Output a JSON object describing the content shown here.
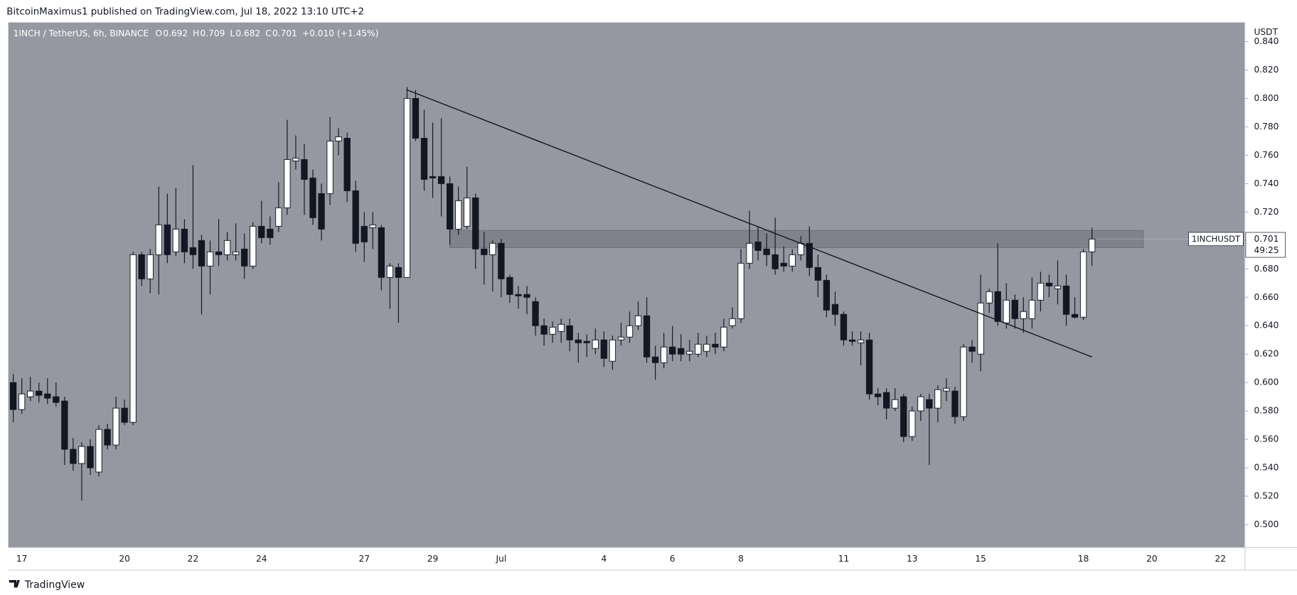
{
  "header": {
    "title": "BitcoinMaximus1 published on TradingView.com, Jul 18, 2022 13:10 UTC+2"
  },
  "footer": {
    "brand": "TradingView"
  },
  "chart_data": {
    "type": "candlestick",
    "title": "1INCH / TetherUS, 6h, BINANCE",
    "ohlc_legend": [
      {
        "key": "O",
        "value": 0.692
      },
      {
        "key": "H",
        "value": 0.709
      },
      {
        "key": "L",
        "value": 0.682
      },
      {
        "key": "C",
        "value": 0.701
      }
    ],
    "change": "+0.010 (+1.45%)",
    "y_label": "USDT",
    "up_color": "#ffffff",
    "down_color": "#131722",
    "background": "#9598a1",
    "categories": [
      null,
      "17",
      null,
      null,
      null,
      null,
      null,
      null,
      null,
      null,
      null,
      null,
      null,
      "20",
      null,
      null,
      null,
      null,
      null,
      null,
      null,
      "22",
      null,
      null,
      null,
      null,
      null,
      null,
      null,
      "24",
      null,
      null,
      null,
      null,
      null,
      null,
      null,
      null,
      null,
      null,
      null,
      "27",
      null,
      null,
      null,
      null,
      null,
      null,
      null,
      "29",
      null,
      null,
      null,
      null,
      null,
      null,
      null,
      "Jul",
      null,
      null,
      null,
      null,
      null,
      null,
      null,
      null,
      null,
      null,
      null,
      "4",
      null,
      null,
      null,
      null,
      null,
      null,
      null,
      "6",
      null,
      null,
      null,
      null,
      null,
      null,
      null,
      "8",
      null,
      null,
      null,
      null,
      null,
      null,
      null,
      null,
      null,
      null,
      null,
      "11",
      null,
      null,
      null,
      null,
      null,
      null,
      null,
      "13",
      null,
      null,
      null,
      null,
      null,
      null,
      null,
      "15",
      null,
      null,
      null,
      null,
      null,
      null,
      null,
      null,
      null,
      null,
      null,
      "18",
      null,
      null,
      null,
      null,
      null,
      null,
      null,
      "20",
      null,
      null,
      null,
      null,
      null,
      null,
      null,
      "22",
      null,
      null
    ],
    "series": [
      {
        "name": "1INCHUSDT",
        "open": [
          0.6,
          0.581,
          0.59,
          0.594,
          0.592,
          0.59,
          0.587,
          0.553,
          0.543,
          0.555,
          0.537,
          0.567,
          0.556,
          0.582,
          0.572,
          0.69,
          0.673,
          0.69,
          0.711,
          0.692,
          0.708,
          0.695,
          0.7,
          0.682,
          0.692,
          0.69,
          0.69,
          0.694,
          0.682,
          0.71,
          0.708,
          0.71,
          0.723,
          0.756,
          0.757,
          0.744,
          0.733,
          0.733,
          0.77,
          0.772,
          0.735,
          0.71,
          0.709,
          0.709,
          0.674,
          0.681,
          0.674,
          0.8,
          0.772,
          0.745,
          0.745,
          0.74,
          0.708,
          0.71,
          0.73,
          0.694,
          0.69,
          0.698,
          0.674,
          0.662,
          0.662,
          0.657,
          0.64,
          0.634,
          0.636,
          0.64,
          0.63,
          0.629,
          0.624,
          0.63,
          0.615,
          0.63,
          0.632,
          0.64,
          0.647,
          0.618,
          0.614,
          0.625,
          0.624,
          0.62,
          0.62,
          0.622,
          0.627,
          0.625,
          0.64,
          0.645,
          0.684,
          0.699,
          0.694,
          0.69,
          0.684,
          0.682,
          0.69,
          0.698,
          0.681,
          0.672,
          0.655,
          0.648,
          0.63,
          0.628,
          0.63,
          0.592,
          0.593,
          0.582,
          0.59,
          0.562,
          0.58,
          0.588,
          0.582,
          0.594,
          0.594,
          0.576,
          0.625,
          0.62,
          0.656,
          0.664,
          0.642,
          0.658,
          0.645,
          0.645,
          0.658,
          0.67,
          0.666,
          0.668,
          0.648,
          0.646,
          0.692,
          null,
          null,
          null,
          null,
          null,
          null,
          null,
          null,
          null,
          null,
          null,
          null,
          null,
          null,
          null,
          null,
          null
        ],
        "high": [
          0.606,
          0.603,
          0.604,
          0.6,
          0.603,
          0.6,
          0.59,
          0.561,
          0.558,
          0.56,
          0.57,
          0.571,
          0.59,
          0.588,
          0.692,
          0.692,
          0.694,
          0.738,
          0.733,
          0.737,
          0.715,
          0.753,
          0.704,
          0.7,
          0.715,
          0.706,
          0.712,
          0.705,
          0.713,
          0.728,
          0.717,
          0.741,
          0.785,
          0.774,
          0.768,
          0.75,
          0.74,
          0.787,
          0.779,
          0.776,
          0.742,
          0.72,
          0.72,
          0.711,
          0.684,
          0.684,
          0.808,
          0.806,
          0.792,
          0.783,
          0.786,
          0.745,
          0.738,
          0.752,
          0.733,
          0.706,
          0.7,
          0.701,
          0.676,
          0.668,
          0.668,
          0.66,
          0.645,
          0.643,
          0.645,
          0.645,
          0.635,
          0.634,
          0.638,
          0.636,
          0.633,
          0.642,
          0.65,
          0.657,
          0.66,
          0.626,
          0.635,
          0.64,
          0.634,
          0.63,
          0.635,
          0.633,
          0.635,
          0.645,
          0.653,
          0.694,
          0.721,
          0.71,
          0.705,
          0.716,
          0.696,
          0.694,
          0.703,
          0.71,
          0.69,
          0.676,
          0.664,
          0.65,
          0.636,
          0.636,
          0.635,
          0.596,
          0.596,
          0.596,
          0.592,
          0.583,
          0.592,
          0.592,
          0.598,
          0.603,
          0.597,
          0.627,
          0.63,
          0.676,
          0.666,
          0.698,
          0.67,
          0.662,
          0.66,
          0.674,
          0.678,
          0.676,
          0.686,
          0.676,
          0.66,
          0.694,
          0.709,
          null,
          null,
          null,
          null,
          null,
          null,
          null,
          null,
          null,
          null,
          null,
          null,
          null,
          null,
          null,
          null,
          null
        ],
        "low": [
          0.572,
          0.578,
          0.587,
          0.586,
          0.585,
          0.583,
          0.542,
          0.538,
          0.517,
          0.535,
          0.534,
          0.553,
          0.553,
          0.57,
          0.57,
          0.668,
          0.663,
          0.662,
          0.684,
          0.689,
          0.684,
          0.68,
          0.648,
          0.662,
          0.682,
          0.686,
          0.686,
          0.673,
          0.68,
          0.698,
          0.697,
          0.706,
          0.718,
          0.75,
          0.718,
          0.711,
          0.7,
          0.725,
          0.76,
          0.727,
          0.692,
          0.685,
          0.694,
          0.665,
          0.652,
          0.642,
          0.674,
          0.77,
          0.735,
          0.73,
          0.717,
          0.697,
          0.704,
          0.708,
          0.68,
          0.669,
          0.664,
          0.66,
          0.656,
          0.652,
          0.648,
          0.633,
          0.626,
          0.628,
          0.628,
          0.622,
          0.614,
          0.618,
          0.62,
          0.611,
          0.609,
          0.626,
          0.628,
          0.637,
          0.614,
          0.602,
          0.61,
          0.615,
          0.615,
          0.615,
          0.618,
          0.618,
          0.62,
          0.622,
          0.638,
          0.642,
          0.68,
          0.686,
          0.682,
          0.676,
          0.678,
          0.678,
          0.686,
          0.675,
          0.66,
          0.646,
          0.64,
          0.626,
          0.626,
          0.612,
          0.588,
          0.584,
          0.574,
          0.58,
          0.558,
          0.559,
          0.573,
          0.542,
          0.572,
          0.587,
          0.571,
          0.573,
          0.614,
          0.608,
          0.649,
          0.64,
          0.638,
          0.638,
          0.635,
          0.638,
          0.65,
          0.66,
          0.655,
          0.64,
          0.645,
          0.644,
          0.682,
          null,
          null,
          null,
          null,
          null,
          null,
          null,
          null,
          null,
          null,
          null,
          null,
          null,
          null,
          null,
          null,
          null
        ],
        "close": [
          0.581,
          0.592,
          0.594,
          0.591,
          0.589,
          0.586,
          0.553,
          0.543,
          0.555,
          0.54,
          0.567,
          0.556,
          0.582,
          0.572,
          0.69,
          0.673,
          0.69,
          0.711,
          0.69,
          0.708,
          0.692,
          0.69,
          0.682,
          0.692,
          0.69,
          0.7,
          0.692,
          0.682,
          0.71,
          0.702,
          0.702,
          0.723,
          0.757,
          0.758,
          0.743,
          0.716,
          0.708,
          0.77,
          0.773,
          0.735,
          0.698,
          0.699,
          0.711,
          0.674,
          0.682,
          0.674,
          0.8,
          0.772,
          0.743,
          0.744,
          0.74,
          0.708,
          0.728,
          0.73,
          0.694,
          0.69,
          0.698,
          0.673,
          0.662,
          0.661,
          0.66,
          0.64,
          0.634,
          0.639,
          0.641,
          0.63,
          0.628,
          0.628,
          0.63,
          0.617,
          0.63,
          0.632,
          0.64,
          0.647,
          0.618,
          0.614,
          0.625,
          0.62,
          0.62,
          0.622,
          0.627,
          0.627,
          0.625,
          0.639,
          0.645,
          0.684,
          0.698,
          0.693,
          0.69,
          0.68,
          0.682,
          0.69,
          0.698,
          0.681,
          0.672,
          0.651,
          0.648,
          0.63,
          0.629,
          0.63,
          0.592,
          0.59,
          0.582,
          0.588,
          0.562,
          0.58,
          0.59,
          0.582,
          0.595,
          0.596,
          0.576,
          0.625,
          0.622,
          0.656,
          0.664,
          0.643,
          0.658,
          0.645,
          0.65,
          0.658,
          0.67,
          0.668,
          0.668,
          0.648,
          0.646,
          0.692,
          0.701,
          null,
          null,
          null,
          null,
          null,
          null,
          null,
          null,
          null,
          null,
          null,
          null,
          null,
          null,
          null,
          null,
          null
        ]
      }
    ],
    "last_price": 0.701,
    "countdown": "49:25",
    "trendline": {
      "start": [
        46,
        0.806
      ],
      "end": [
        126,
        0.618
      ]
    },
    "zone": {
      "from": 51,
      "to": 132,
      "ylim": [
        0.695,
        0.707
      ]
    },
    "ylim": [
      0.4838,
      0.8535
    ],
    "yticks": [
      {
        "value": 0.5,
        "label": "0.500"
      },
      {
        "value": 0.52,
        "label": "0.520"
      },
      {
        "value": 0.54,
        "label": "0.540"
      },
      {
        "value": 0.56,
        "label": "0.560"
      },
      {
        "value": 0.58,
        "label": "0.580"
      },
      {
        "value": 0.6,
        "label": "0.600"
      },
      {
        "value": 0.62,
        "label": "0.620"
      },
      {
        "value": 0.64,
        "label": "0.640"
      },
      {
        "value": 0.66,
        "label": "0.660"
      },
      {
        "value": 0.68,
        "label": "0.680"
      },
      {
        "value": 0.7,
        "label": "0.700"
      },
      {
        "value": 0.72,
        "label": "0.720"
      },
      {
        "value": 0.74,
        "label": "0.740"
      },
      {
        "value": 0.76,
        "label": "0.760"
      },
      {
        "value": 0.78,
        "label": "0.780"
      },
      {
        "value": 0.8,
        "label": "0.800"
      },
      {
        "value": 0.82,
        "label": "0.820"
      },
      {
        "value": 0.84,
        "label": "0.840"
      }
    ],
    "grid": false
  }
}
